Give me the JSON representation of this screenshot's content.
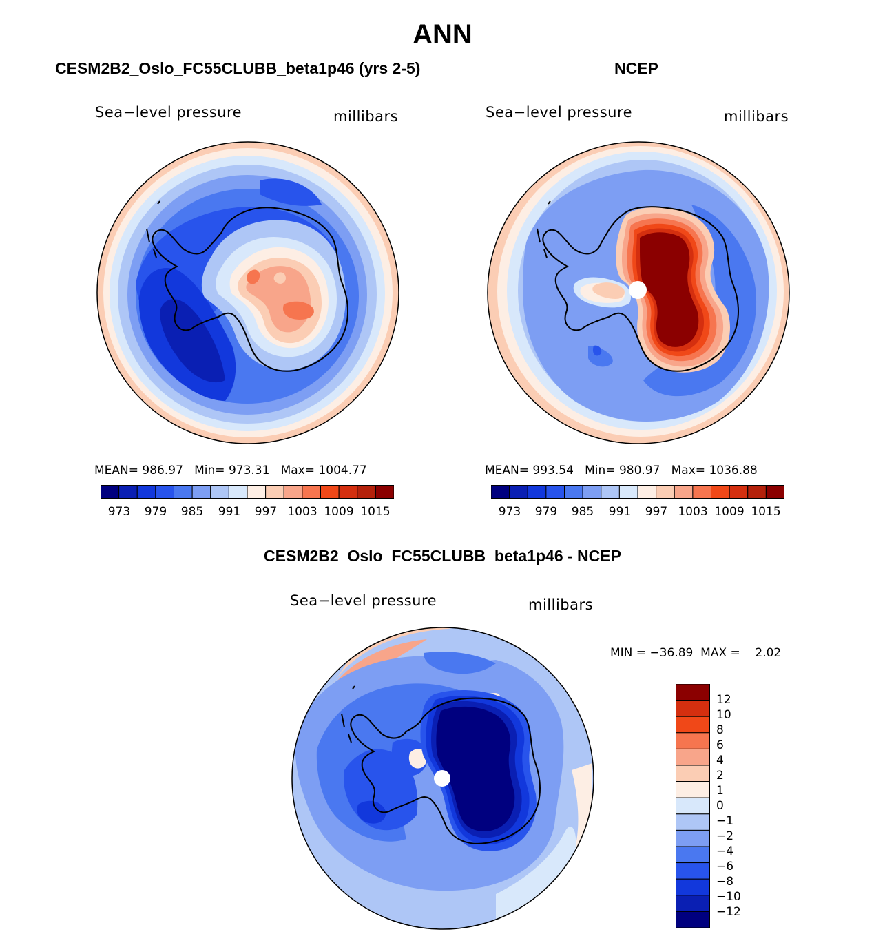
{
  "figure": {
    "title": "ANN"
  },
  "colors": {
    "levels_abs": [
      "#00007f",
      "#0a1fb3",
      "#1238dc",
      "#2854ec",
      "#4a78f0",
      "#7d9ef3",
      "#aec6f6",
      "#d8e8fb",
      "#fdeee4",
      "#fbcdb4",
      "#f8a58a",
      "#f6754f",
      "#f04818",
      "#d42f0f",
      "#b4210b",
      "#8b0000"
    ],
    "levels_diff": [
      "#00007f",
      "#0a1fb3",
      "#1238dc",
      "#2854ec",
      "#4a78f0",
      "#7d9ef3",
      "#aec6f6",
      "#d8e8fb",
      "#fdeee4",
      "#fbcdb4",
      "#f8a58a",
      "#f6754f",
      "#f04818",
      "#d42f0f",
      "#8b0000"
    ]
  },
  "chart_data": [
    {
      "type": "map",
      "projection": "south-polar-stereographic",
      "title": "CESM2B2_Oslo_FC55CLUBB_beta1p46 (yrs 2-5)",
      "variable": "Sea−level pressure",
      "units": "millibars",
      "stats": {
        "mean_label": "MEAN=",
        "mean": "986.97",
        "min_label": "Min=",
        "min": "973.31",
        "max_label": "Max=",
        "max": "1004.77"
      },
      "colorbar": {
        "orientation": "horizontal",
        "tick_labels": [
          "973",
          "979",
          "985",
          "991",
          "997",
          "1003",
          "1009",
          "1015"
        ]
      }
    },
    {
      "type": "map",
      "projection": "south-polar-stereographic",
      "title": "NCEP",
      "variable": "Sea−level pressure",
      "units": "millibars",
      "stats": {
        "mean_label": "MEAN=",
        "mean": "993.54",
        "min_label": "Min=",
        "min": "980.97",
        "max_label": "Max=",
        "max": "1036.88"
      },
      "colorbar": {
        "orientation": "horizontal",
        "tick_labels": [
          "973",
          "979",
          "985",
          "991",
          "997",
          "1003",
          "1009",
          "1015"
        ]
      }
    },
    {
      "type": "map",
      "projection": "south-polar-stereographic",
      "title": "CESM2B2_Oslo_FC55CLUBB_beta1p46 - NCEP",
      "variable": "Sea−level pressure",
      "units": "millibars",
      "stats_line": "MIN = −36.89  MAX =    2.02",
      "colorbar": {
        "orientation": "vertical",
        "tick_labels": [
          "12",
          "10",
          "8",
          "6",
          "4",
          "2",
          "1",
          "0",
          "−1",
          "−2",
          "−4",
          "−6",
          "−8",
          "−10",
          "−12"
        ]
      }
    }
  ]
}
